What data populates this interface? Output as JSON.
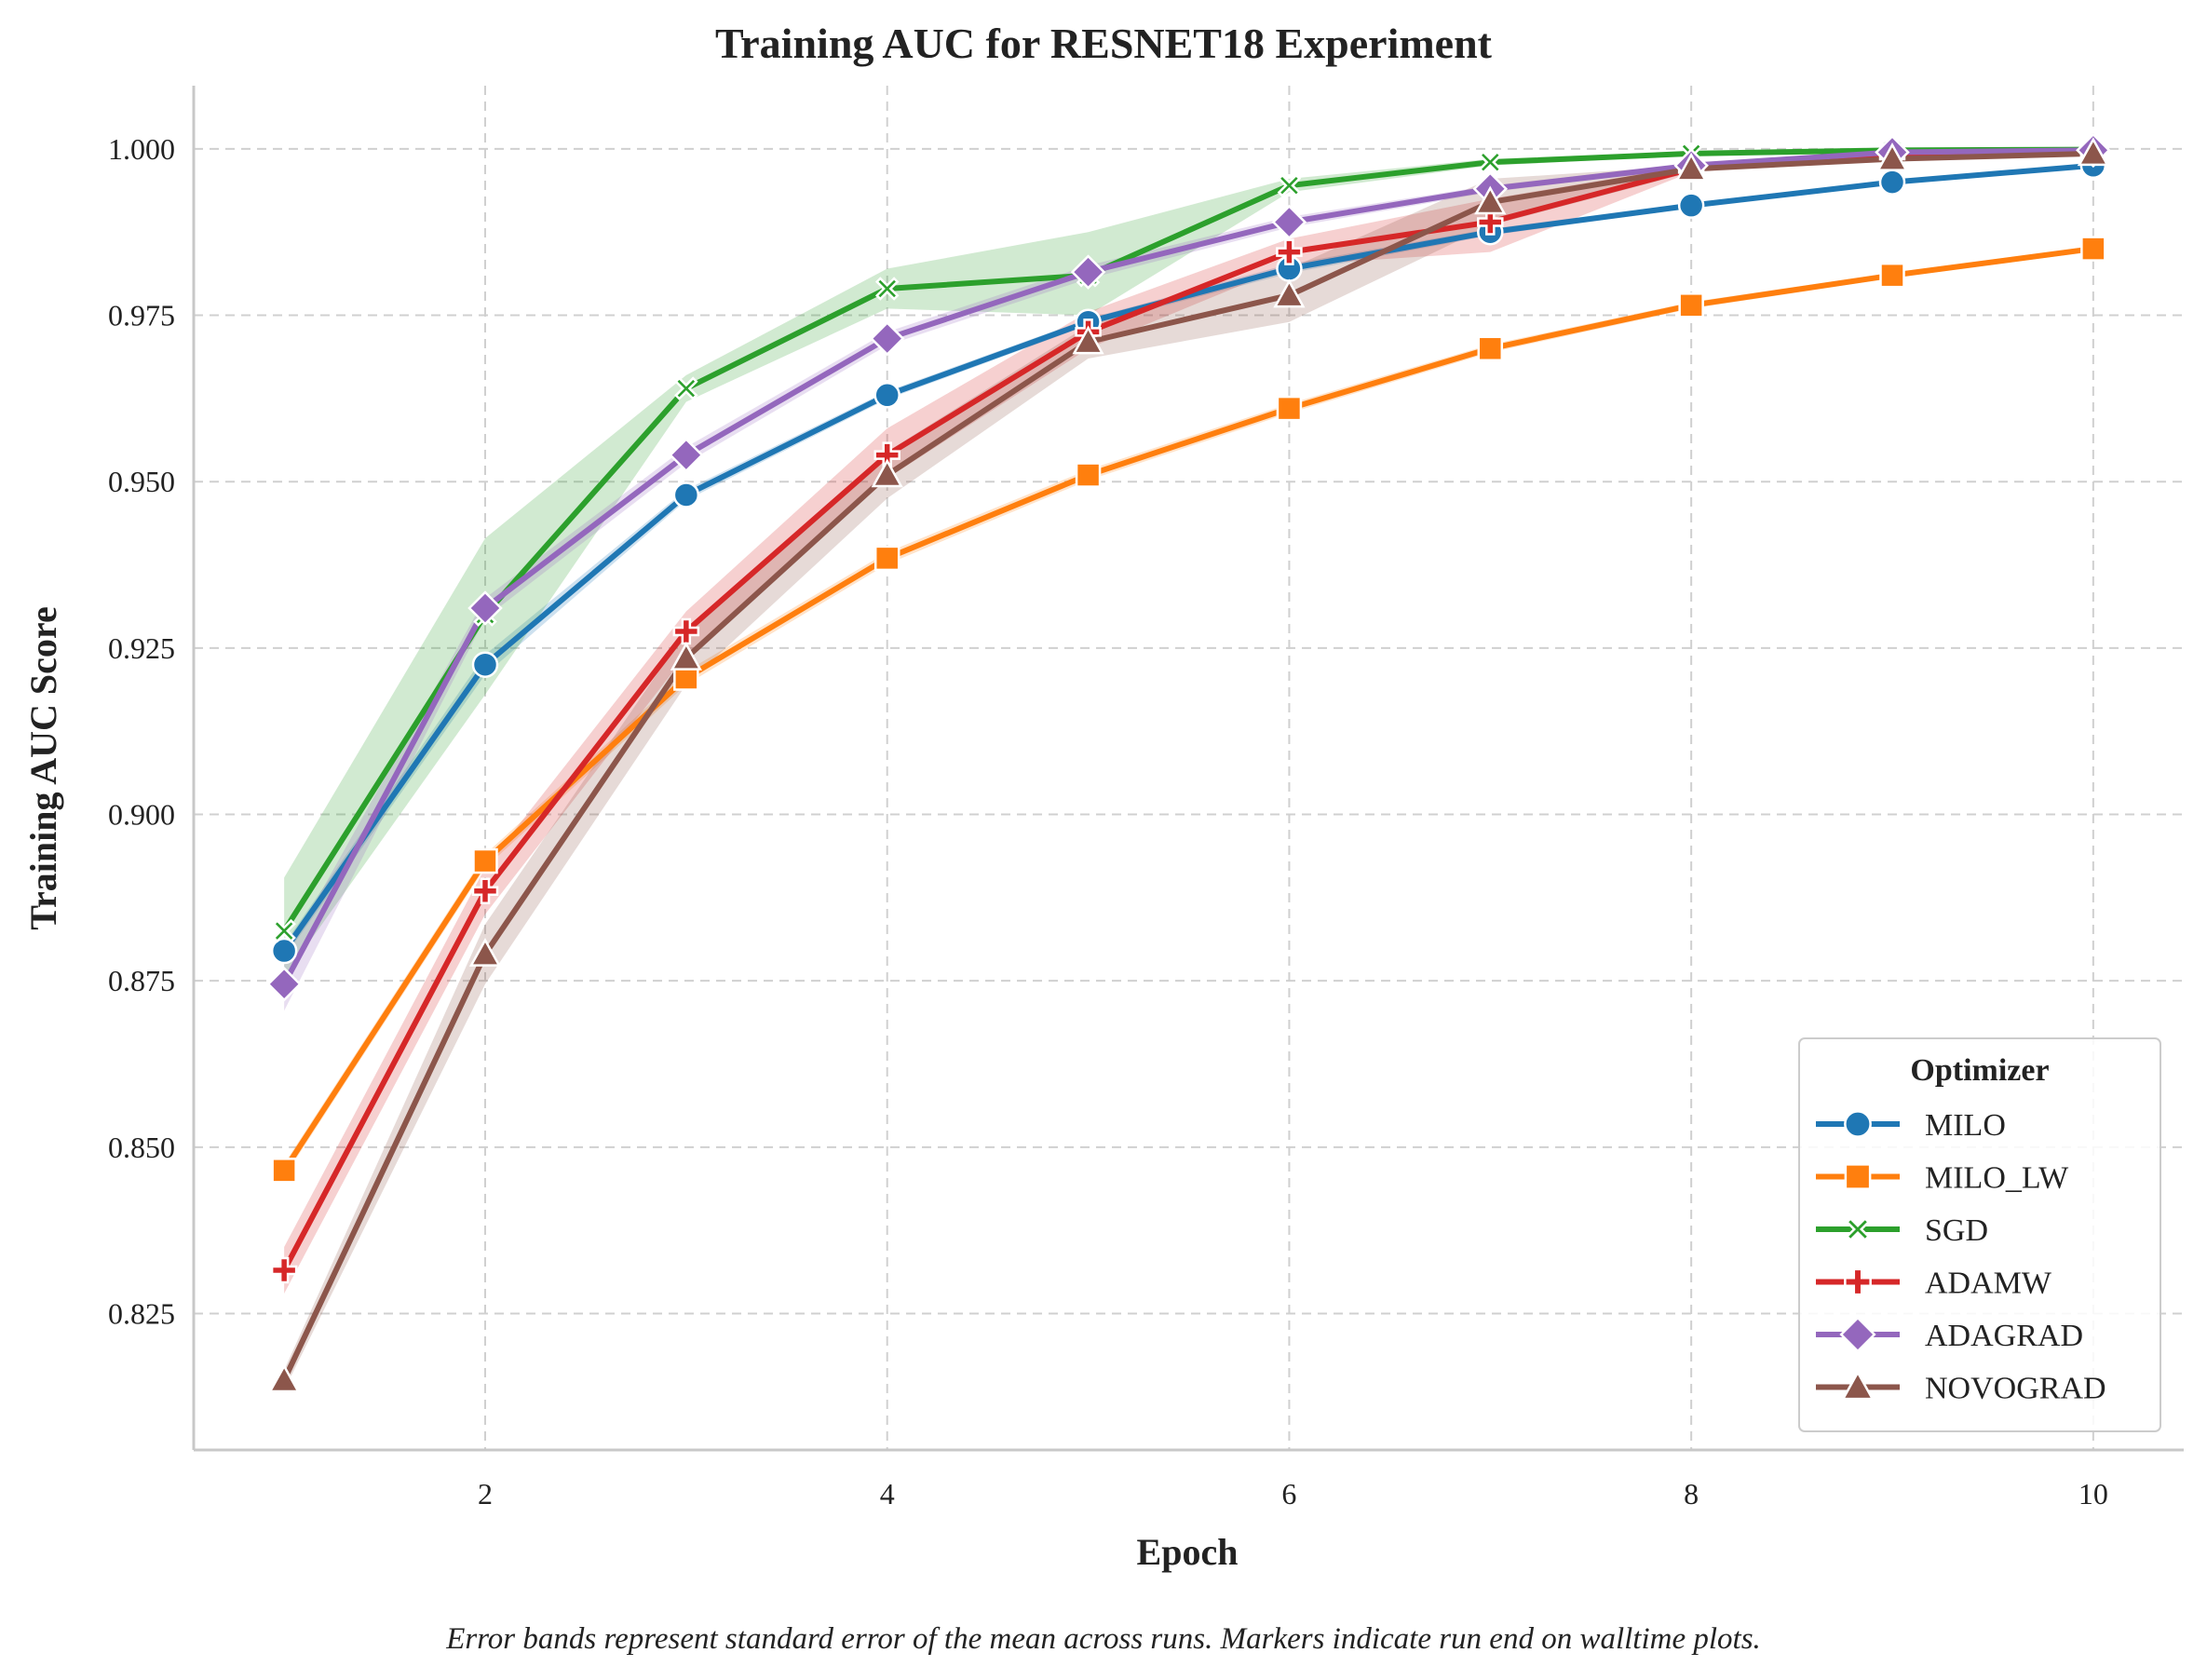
{
  "chart_data": {
    "type": "line",
    "title": "Training AUC for RESNET18 Experiment",
    "xlabel": "Epoch",
    "ylabel": "Training AUC Score",
    "xlim": [
      0.55,
      10.45
    ],
    "ylim": [
      0.8045,
      1.0095
    ],
    "x_ticks": [
      2,
      4,
      6,
      8,
      10
    ],
    "y_ticks": [
      0.825,
      0.85,
      0.875,
      0.9,
      0.925,
      0.95,
      0.975,
      1.0
    ],
    "grid": true,
    "legend": {
      "title": "Optimizer",
      "placement": "lower-right"
    },
    "caption": "Error bands represent standard error of the mean across runs. Markers indicate run end on walltime plots.",
    "x": [
      1,
      2,
      3,
      4,
      5,
      6,
      7,
      8,
      9,
      10
    ],
    "series": [
      {
        "name": "MILO",
        "color": "#1f77b4",
        "marker": "circle",
        "values": [
          0.8795,
          0.9225,
          0.948,
          0.963,
          0.974,
          0.982,
          0.9875,
          0.9915,
          0.995,
          0.9975
        ],
        "lower": [
          0.8785,
          0.921,
          0.9472,
          0.9624,
          0.9735,
          0.9813,
          0.987,
          0.9911,
          0.9947,
          0.9973
        ],
        "upper": [
          0.8805,
          0.924,
          0.9488,
          0.9636,
          0.9745,
          0.9827,
          0.988,
          0.9919,
          0.9953,
          0.9977
        ]
      },
      {
        "name": "MILO_LW",
        "color": "#ff7f0e",
        "marker": "square",
        "values": [
          0.8465,
          0.893,
          0.9205,
          0.9385,
          0.951,
          0.961,
          0.97,
          0.9765,
          0.981,
          0.985
        ],
        "lower": [
          0.8455,
          0.892,
          0.9195,
          0.9376,
          0.9502,
          0.9603,
          0.9694,
          0.976,
          0.9806,
          0.9846
        ],
        "upper": [
          0.8475,
          0.894,
          0.9215,
          0.9394,
          0.9518,
          0.9617,
          0.9706,
          0.977,
          0.9814,
          0.9854
        ]
      },
      {
        "name": "SGD",
        "color": "#2ca02c",
        "marker": "x",
        "values": [
          0.8825,
          0.93,
          0.964,
          0.979,
          0.981,
          0.9945,
          0.998,
          0.9993,
          0.9998,
          0.9999
        ],
        "lower": [
          0.8755,
          0.918,
          0.962,
          0.976,
          0.975,
          0.9935,
          0.9975,
          0.999,
          0.9997,
          0.9998
        ],
        "upper": [
          0.8905,
          0.9415,
          0.966,
          0.982,
          0.9875,
          0.9955,
          0.9985,
          0.9996,
          0.9999,
          1.0
        ]
      },
      {
        "name": "ADAMW",
        "color": "#d62728",
        "marker": "plus",
        "values": [
          0.8315,
          0.8885,
          0.9275,
          0.954,
          0.9725,
          0.9845,
          0.989,
          0.997,
          0.999,
          0.9995
        ],
        "lower": [
          0.828,
          0.885,
          0.924,
          0.9505,
          0.97,
          0.9825,
          0.9845,
          0.9965,
          0.9988,
          0.9994
        ],
        "upper": [
          0.835,
          0.892,
          0.9305,
          0.958,
          0.9755,
          0.9865,
          0.9925,
          0.9975,
          0.9992,
          0.9996
        ]
      },
      {
        "name": "ADAGRAD",
        "color": "#9467bd",
        "marker": "diamond",
        "values": [
          0.8745,
          0.931,
          0.954,
          0.9715,
          0.9815,
          0.989,
          0.994,
          0.9975,
          0.9995,
          0.9998
        ],
        "lower": [
          0.8705,
          0.9295,
          0.9528,
          0.9705,
          0.9805,
          0.9882,
          0.9935,
          0.9972,
          0.9993,
          0.9997
        ],
        "upper": [
          0.8785,
          0.9325,
          0.9552,
          0.9725,
          0.9825,
          0.9898,
          0.9945,
          0.9978,
          0.9997,
          0.9999
        ]
      },
      {
        "name": "NOVOGRAD",
        "color": "#8c564b",
        "marker": "triangle",
        "values": [
          0.815,
          0.879,
          0.9235,
          0.951,
          0.971,
          0.978,
          0.992,
          0.997,
          0.9985,
          0.9993
        ],
        "lower": [
          0.8135,
          0.8745,
          0.9195,
          0.9475,
          0.9685,
          0.974,
          0.9885,
          0.9965,
          0.9982,
          0.9991
        ],
        "upper": [
          0.8165,
          0.8835,
          0.9275,
          0.9545,
          0.9735,
          0.982,
          0.9955,
          0.9975,
          0.9988,
          0.9995
        ]
      }
    ]
  }
}
